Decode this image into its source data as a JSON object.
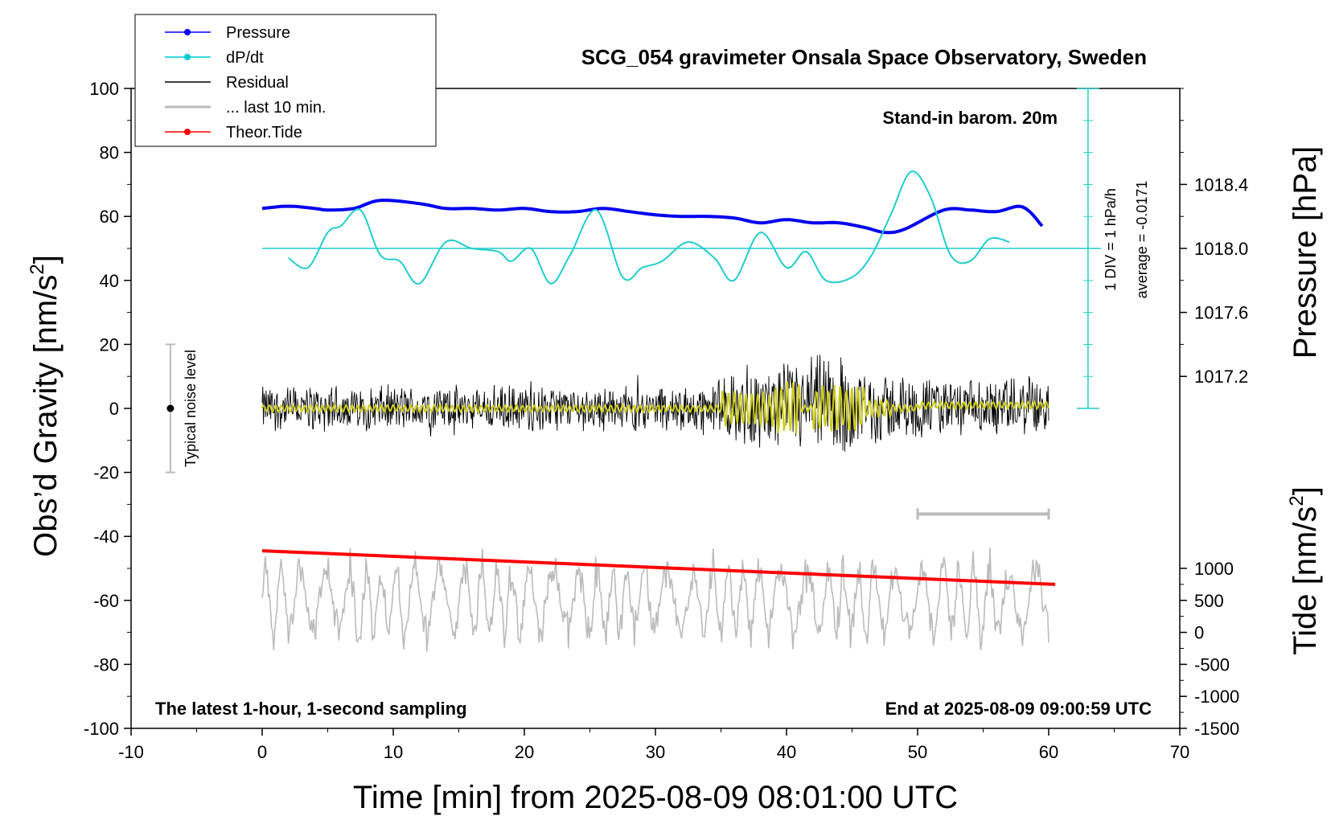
{
  "chart_data": {
    "type": "line",
    "title": "SCG_054 gravimeter Onsala Space Observatory, Sweden",
    "subtitle_left": "The latest 1-hour, 1-second sampling",
    "subtitle_right": "End at 2025-08-09 09:00:59 UTC",
    "annotation_barometer": "Stand-in barom. 20m",
    "annotation_div": "1 DIV = 1 hPa/h",
    "annotation_average": "average = -0.0171",
    "noise_label": "Typical noise level",
    "xlabel": "Time [min] from 2025-08-09 08:01:00 UTC",
    "ylabel_left_pre": "Obs’d Gravity [nm/s",
    "ylabel_sup": "2",
    "ylabel_left_post": "]",
    "ylabel_right_top": "Pressure [hPa]",
    "ylabel_right_bottom_pre": "Tide [nm/s",
    "ylabel_right_bottom_post": "]",
    "xlim": [
      -10,
      70
    ],
    "ylim": [
      -100,
      100
    ],
    "x_ticks": [
      "-10",
      "0",
      "10",
      "20",
      "30",
      "40",
      "50",
      "60",
      "70"
    ],
    "y_ticks": [
      "100",
      "80",
      "60",
      "40",
      "20",
      "0",
      "-20",
      "-40",
      "-60",
      "-80",
      "-100"
    ],
    "pressure_ticks": [
      "1018.4",
      "1018.0",
      "1017.6",
      "1017.2"
    ],
    "pressure_tick_values": [
      1018.4,
      1018.0,
      1017.6,
      1017.2
    ],
    "pressure_axis": {
      "value_at_0_gravity": 1017.0,
      "hpa_per_gravity_unit": 0.02
    },
    "tide_ticks": [
      "1000",
      "500",
      "0",
      "-500",
      "-1000",
      "-1500"
    ],
    "tide_tick_values": [
      1000,
      500,
      0,
      -500,
      -1000,
      -1500
    ],
    "tide_axis": {
      "value_at_-100_gravity": -1500,
      "nms2_per_gravity_unit": 50
    },
    "legend": {
      "placement": "top-left",
      "items": [
        {
          "label": "Pressure",
          "color": "#0000ff",
          "marker": true
        },
        {
          "label": "dP/dt",
          "color": "#00cccc",
          "marker": true
        },
        {
          "label": "Residual",
          "color": "#000000",
          "marker": false
        },
        {
          "label": "... last 10 min.",
          "color": "#bbbbbb",
          "marker": false
        },
        {
          "label": "Theor.Tide",
          "color": "#ff0000",
          "marker": true
        }
      ]
    },
    "colors": {
      "pressure": "#0000ee",
      "dpdt": "#22cccc",
      "residual": "#000000",
      "residual_smooth": "#cccc22",
      "last10": "#bbbbbb",
      "tide": "#ff0000",
      "noise_bar": "#bbbbbb"
    },
    "series": [
      {
        "name": "Pressure",
        "unit": "gravity-axis units (1 unit = 0.02 hPa)",
        "x": [
          0,
          2,
          4,
          5,
          7,
          9,
          12,
          14,
          16,
          18,
          20,
          22,
          24,
          26,
          28,
          30,
          32,
          34,
          36,
          38,
          40,
          42,
          44,
          46,
          47.5,
          49,
          52,
          54,
          56,
          58,
          59.5
        ],
        "y": [
          62.5,
          63.2,
          62.5,
          62,
          62.5,
          65,
          64,
          62.5,
          62.5,
          62,
          62.5,
          61.5,
          61.5,
          62.5,
          61.5,
          60.5,
          60,
          60,
          59.5,
          58,
          59,
          58,
          58,
          56.5,
          55,
          56,
          62,
          62,
          61.5,
          63,
          57
        ]
      },
      {
        "name": "dP/dt",
        "unit": "gravity-axis units (zero at 50, 1 DIV = 1 hPa/h)",
        "x": [
          2,
          3.5,
          5,
          6,
          7.5,
          9,
          10.5,
          12,
          14,
          16,
          18,
          19,
          20.5,
          22,
          23.5,
          25.5,
          27.5,
          29,
          30.5,
          32.5,
          34.5,
          36,
          38,
          40,
          41.5,
          43,
          45,
          46.5,
          48,
          49.5,
          51,
          52.5,
          54,
          55.5,
          57
        ],
        "y": [
          47,
          44,
          55,
          57,
          62,
          48,
          46,
          39,
          52,
          50,
          49,
          46,
          50,
          39,
          48,
          62,
          41,
          44,
          46,
          52,
          47,
          40,
          55,
          44,
          49,
          40,
          41,
          48,
          61,
          74,
          66,
          48,
          46,
          53,
          52
        ]
      },
      {
        "name": "Residual",
        "unit": "nm/s2",
        "envelope_x": [
          0,
          10,
          20,
          30,
          34,
          36,
          38,
          40,
          42,
          43,
          44,
          46,
          48,
          50,
          55,
          60
        ],
        "envelope_amplitude": [
          8,
          8,
          8,
          8,
          9,
          12,
          14,
          16,
          18,
          20,
          18,
          14,
          12,
          11,
          10,
          10
        ]
      },
      {
        "name": "... last 10 min.",
        "unit": "gravity-axis units (trace offset by -60)",
        "x_range": [
          0,
          60
        ],
        "center": -60,
        "amplitude_range": [
          6,
          18
        ]
      },
      {
        "name": "Theor.Tide",
        "unit": "gravity-axis units",
        "x": [
          0,
          60.5
        ],
        "y": [
          -44.5,
          -55
        ]
      }
    ],
    "noise_bar": {
      "x": -7,
      "y_range": [
        -20,
        20
      ],
      "center": 0
    },
    "last10_bar": {
      "x_range": [
        50,
        60
      ],
      "y": -33
    },
    "dpdt_scale": {
      "x": 63,
      "y_range": [
        0,
        100
      ],
      "zero_line": 50
    },
    "grid": false
  }
}
